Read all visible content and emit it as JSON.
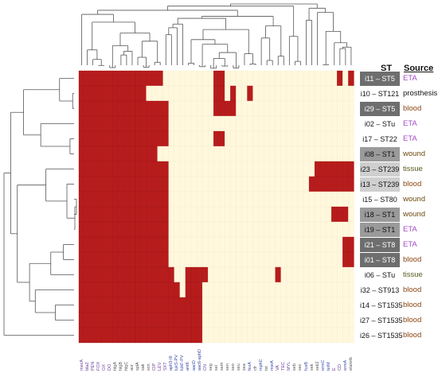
{
  "headers": {
    "st": "ST",
    "source": "Source"
  },
  "colors": {
    "present": "#b71c1c",
    "absent": "#fff8dc",
    "dendrogram": "#555555",
    "label_resistance": "#6a3d9a",
    "label_virulence": "#3949ab",
    "label_other": "#555555",
    "source_eta": "#a64ac9",
    "source_blood": "#8b4513",
    "source_wound": "#6b4a0c",
    "source_tissue": "#5a5a1e",
    "source_prosthesis": "#111111",
    "source_box_dark": "#6e6e6e",
    "source_box_mid": "#9a9a9a",
    "source_box_light": "#cfcfcf"
  },
  "rows": [
    {
      "label": "i11 – ST5",
      "source": "ETA",
      "source_kind": "eta",
      "box": "dark"
    },
    {
      "label": "i10 – ST121",
      "source": "prosthesis",
      "source_kind": "prosthesis",
      "box": "none"
    },
    {
      "label": "i29 – ST5",
      "source": "blood",
      "source_kind": "blood",
      "box": "dark"
    },
    {
      "label": "i02 – STu",
      "source": "ETA",
      "source_kind": "eta",
      "box": "none"
    },
    {
      "label": "i17 – ST22",
      "source": "ETA",
      "source_kind": "eta",
      "box": "none"
    },
    {
      "label": "i08 – ST1",
      "source": "wound",
      "source_kind": "wound",
      "box": "mid"
    },
    {
      "label": "i23 – ST239",
      "source": "tissue",
      "source_kind": "tissue",
      "box": "light"
    },
    {
      "label": "i13 – ST239",
      "source": "blood",
      "source_kind": "blood",
      "box": "light"
    },
    {
      "label": "i15 – ST80",
      "source": "wound",
      "source_kind": "wound",
      "box": "none"
    },
    {
      "label": "i18 – ST1",
      "source": "wound",
      "source_kind": "wound",
      "box": "mid"
    },
    {
      "label": "i19 – ST1",
      "source": "ETA",
      "source_kind": "eta",
      "box": "mid"
    },
    {
      "label": "i21 – ST8",
      "source": "ETA",
      "source_kind": "eta",
      "box": "dark"
    },
    {
      "label": "i01 – ST8",
      "source": "blood",
      "source_kind": "blood",
      "box": "dark"
    },
    {
      "label": "i06 – STu",
      "source": "tissue",
      "source_kind": "tissue",
      "box": "none"
    },
    {
      "label": "i32 – ST913",
      "source": "blood",
      "source_kind": "blood",
      "box": "none"
    },
    {
      "label": "i14 – ST1535",
      "source": "blood",
      "source_kind": "blood",
      "box": "none"
    },
    {
      "label": "i27 – ST1535",
      "source": "blood",
      "source_kind": "blood",
      "box": "none"
    },
    {
      "label": "i26 – ST1535",
      "source": "blood",
      "source_kind": "blood",
      "box": "none"
    }
  ],
  "columns": [
    {
      "label": "mecA",
      "kind": "resistance"
    },
    {
      "label": "blaZ",
      "kind": "resistance"
    },
    {
      "label": "PEN",
      "kind": "resistance"
    },
    {
      "label": "FOX",
      "kind": "resistance"
    },
    {
      "label": "OX",
      "kind": "resistance"
    },
    {
      "label": "DO",
      "kind": "resistance"
    },
    {
      "label": "hlgA",
      "kind": "other"
    },
    {
      "label": "hlgB",
      "kind": "other"
    },
    {
      "label": "hlgC",
      "kind": "other"
    },
    {
      "label": "aur",
      "kind": "other"
    },
    {
      "label": "splA",
      "kind": "other"
    },
    {
      "label": "sak",
      "kind": "other"
    },
    {
      "label": "scn",
      "kind": "other"
    },
    {
      "label": "CIP",
      "kind": "resistance"
    },
    {
      "label": "LEV",
      "kind": "resistance"
    },
    {
      "label": "SXT",
      "kind": "resistance"
    },
    {
      "label": "aph3-III",
      "kind": "virulence"
    },
    {
      "label": "lukS-PV",
      "kind": "virulence"
    },
    {
      "label": "lukF-PV",
      "kind": "virulence"
    },
    {
      "label": "ant6",
      "kind": "virulence"
    },
    {
      "label": "aacD",
      "kind": "virulence"
    },
    {
      "label": "aac6-aphD",
      "kind": "virulence"
    },
    {
      "label": "CN",
      "kind": "resistance"
    },
    {
      "label": "seg",
      "kind": "other"
    },
    {
      "label": "sei",
      "kind": "other"
    },
    {
      "label": "sem",
      "kind": "other"
    },
    {
      "label": "sen",
      "kind": "other"
    },
    {
      "label": "seo",
      "kind": "other"
    },
    {
      "label": "seu",
      "kind": "other"
    },
    {
      "label": "sea",
      "kind": "other"
    },
    {
      "label": "fexA",
      "kind": "virulence"
    },
    {
      "label": "cfr",
      "kind": "other"
    },
    {
      "label": "mphC",
      "kind": "virulence"
    },
    {
      "label": "tst",
      "kind": "other"
    },
    {
      "label": "msrA",
      "kind": "virulence"
    },
    {
      "label": "VA",
      "kind": "resistance"
    },
    {
      "label": "TEC",
      "kind": "resistance"
    },
    {
      "label": "MYL",
      "kind": "resistance"
    },
    {
      "label": "seb",
      "kind": "other"
    },
    {
      "label": "sec",
      "kind": "other"
    },
    {
      "label": "fusB",
      "kind": "virulence"
    },
    {
      "label": "sek",
      "kind": "other"
    },
    {
      "label": "sek2",
      "kind": "other"
    },
    {
      "label": "ermC",
      "kind": "virulence"
    },
    {
      "label": "tetM",
      "kind": "virulence"
    },
    {
      "label": "E",
      "kind": "resistance"
    },
    {
      "label": "CD",
      "kind": "resistance"
    },
    {
      "label": "ermA",
      "kind": "virulence"
    },
    {
      "label": "eta/etb",
      "kind": "other"
    }
  ],
  "matrix": [
    "1111111111111110000000001100000000000000000000101",
    "1111111111110000000000001101001000000000000000000",
    "1111111111111111000000001111000000000000000000000",
    "1111111111111111000000000000000000000000000000000",
    "1111111111111111000000001100000000000000000000000",
    "1111111111111100000000000000000000000000000000000",
    "1111111111111111000000000000000000000000001111111",
    "1111111111111111000000000000000000000000011111111",
    "1111111111111111000000000000000000000000000000000",
    "1111111111111111000000000000000000000000000001110",
    "1111111111111111000000000000000000000000000000000",
    "1111111111111111000000000000000000000000000000011",
    "1111111111111111000000000000000000000000000000011",
    "1111111111111111100111100000000000010000000000000",
    "1111111111111111110111000000000000000000000000000",
    "1111111111111111111111000000000000000000000000000",
    "1111111111111111111111000000000000000000000000000",
    "1111111111111111111111000000000000000000000000000"
  ]
}
